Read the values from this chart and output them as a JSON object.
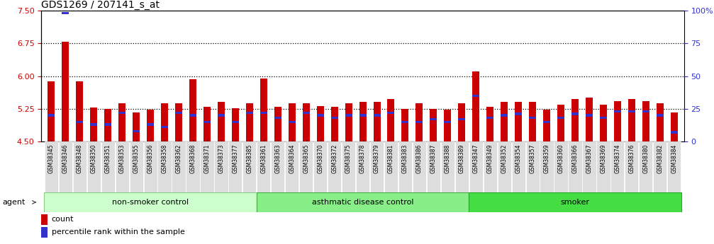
{
  "title": "GDS1269 / 207141_s_at",
  "ylim_left": [
    4.5,
    7.5
  ],
  "ylim_right": [
    0,
    100
  ],
  "yticks_left": [
    4.5,
    5.25,
    6.0,
    6.75,
    7.5
  ],
  "yticks_right": [
    0,
    25,
    50,
    75,
    100
  ],
  "baseline": 4.5,
  "bar_color": "#CC0000",
  "percentile_color": "#3333CC",
  "samples": [
    "GSM38345",
    "GSM38346",
    "GSM38348",
    "GSM38350",
    "GSM38351",
    "GSM38353",
    "GSM38355",
    "GSM38356",
    "GSM38358",
    "GSM38362",
    "GSM38368",
    "GSM38371",
    "GSM38373",
    "GSM38377",
    "GSM38385",
    "GSM38361",
    "GSM38363",
    "GSM38364",
    "GSM38365",
    "GSM38370",
    "GSM38372",
    "GSM38375",
    "GSM38378",
    "GSM38379",
    "GSM38381",
    "GSM38383",
    "GSM38386",
    "GSM38387",
    "GSM38388",
    "GSM38389",
    "GSM38347",
    "GSM38349",
    "GSM38352",
    "GSM38354",
    "GSM38357",
    "GSM38359",
    "GSM38360",
    "GSM38366",
    "GSM38367",
    "GSM38369",
    "GSM38374",
    "GSM38376",
    "GSM38380",
    "GSM38382",
    "GSM38384"
  ],
  "counts": [
    5.88,
    6.78,
    5.88,
    5.28,
    5.25,
    5.37,
    5.17,
    5.23,
    5.37,
    5.37,
    5.92,
    5.3,
    5.4,
    5.26,
    5.37,
    5.95,
    5.3,
    5.37,
    5.37,
    5.31,
    5.3,
    5.37,
    5.4,
    5.4,
    5.47,
    5.25,
    5.37,
    5.25,
    5.23,
    5.37,
    6.1,
    5.3,
    5.4,
    5.4,
    5.4,
    5.23,
    5.35,
    5.47,
    5.5,
    5.35,
    5.43,
    5.47,
    5.43,
    5.37,
    5.17
  ],
  "percentiles": [
    20,
    98,
    15,
    13,
    13,
    22,
    8,
    13,
    11,
    22,
    20,
    15,
    20,
    15,
    22,
    22,
    18,
    15,
    22,
    20,
    18,
    20,
    20,
    20,
    22,
    15,
    15,
    17,
    15,
    17,
    35,
    18,
    20,
    21,
    18,
    15,
    18,
    21,
    20,
    18,
    23,
    23,
    23,
    20,
    7
  ],
  "groups": [
    {
      "label": "non-smoker control",
      "start": 0,
      "end": 15,
      "color": "#ccffcc",
      "border_color": "#88cc88"
    },
    {
      "label": "asthmatic disease control",
      "start": 15,
      "end": 30,
      "color": "#88ee88",
      "border_color": "#44aa44"
    },
    {
      "label": "smoker",
      "start": 30,
      "end": 45,
      "color": "#44dd44",
      "border_color": "#22aa22"
    }
  ],
  "bg_color": "#ffffff",
  "plot_bg_color": "#ffffff",
  "tick_label_color_left": "#CC0000",
  "tick_label_color_right": "#3333CC",
  "grid_color": "#000000",
  "xtick_bg_color": "#dddddd",
  "group_text_color": "#000000"
}
